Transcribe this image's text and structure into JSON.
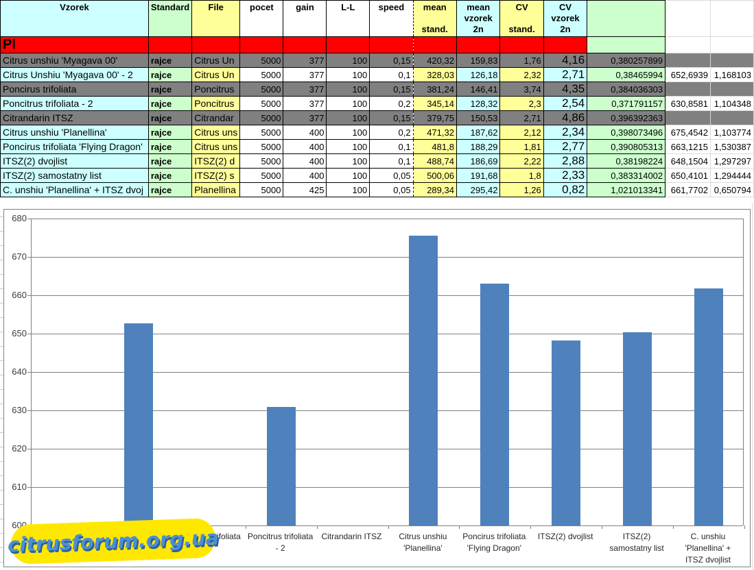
{
  "table": {
    "headers": [
      "Vzorek",
      "Standard",
      "File",
      "pocet",
      "gain",
      "L-L",
      "speed",
      "mean\n\nstand.",
      "mean\nvzorek\n2n",
      "CV\n\nstand.",
      "CV\nvzorek\n2n",
      "",
      "",
      ""
    ],
    "section_label": "PI",
    "rows": [
      {
        "muted": true,
        "cells": [
          "Citrus unshiu 'Myagava 00'",
          "rajce",
          "Citrus Un",
          "5000",
          "377",
          "100",
          "0,15",
          "420,32",
          "159,83",
          "1,76",
          "4,16",
          "0,380257899",
          "",
          ""
        ]
      },
      {
        "muted": false,
        "cells": [
          "Citrus Unshiu 'Myagava 00' - 2",
          "rajce",
          "Citrus Un",
          "5000",
          "377",
          "100",
          "0,1",
          "328,03",
          "126,18",
          "2,32",
          "2,71",
          "0,38465994",
          "652,6939",
          "1,168103"
        ]
      },
      {
        "muted": true,
        "cells": [
          "Poncirus trifoliata",
          "rajce",
          "Poncitrus",
          "5000",
          "377",
          "100",
          "0,15",
          "381,24",
          "146,41",
          "3,74",
          "4,35",
          "0,384036303",
          "",
          ""
        ]
      },
      {
        "muted": false,
        "cells": [
          "Poncitrus trifoliata - 2",
          "rajce",
          "Poncitrus",
          "5000",
          "377",
          "100",
          "0,2",
          "345,14",
          "128,32",
          "2,3",
          "2,54",
          "0,371791157",
          "630,8581",
          "1,104348"
        ]
      },
      {
        "muted": true,
        "cells": [
          "Citrandarin ITSZ",
          "rajce",
          "Citrandar",
          "5000",
          "377",
          "100",
          "0,15",
          "379,75",
          "150,53",
          "2,71",
          "4,86",
          "0,396392363",
          "",
          ""
        ]
      },
      {
        "muted": false,
        "cells": [
          "Citrus unshiu 'Planellina'",
          "rajce",
          "Citrus uns",
          "5000",
          "400",
          "100",
          "0,2",
          "471,32",
          "187,62",
          "2,12",
          "2,34",
          "0,398073496",
          "675,4542",
          "1,103774"
        ]
      },
      {
        "muted": false,
        "cells": [
          "Poncirus trifoliata 'Flying Dragon'",
          "rajce",
          "Citrus uns",
          "5000",
          "400",
          "100",
          "0,1",
          "481,8",
          "188,29",
          "1,81",
          "2,77",
          "0,390805313",
          "663,1215",
          "1,530387"
        ]
      },
      {
        "muted": false,
        "cells": [
          "ITSZ(2) dvojlist",
          "rajce",
          "ITSZ(2) d",
          "5000",
          "400",
          "100",
          "0,1",
          "488,74",
          "186,69",
          "2,22",
          "2,88",
          "0,38198224",
          "648,1504",
          "1,297297"
        ]
      },
      {
        "muted": false,
        "cells": [
          "ITSZ(2) samostatny list",
          "rajce",
          "ITSZ(2) s",
          "5000",
          "400",
          "100",
          "0,05",
          "500,06",
          "191,68",
          "1,8",
          "2,33",
          "0,383314002",
          "650,4101",
          "1,294444"
        ]
      },
      {
        "muted": false,
        "cells": [
          "C. unshiu 'Planellina' + ITSZ dvoj",
          "rajce",
          "Planellina",
          "5000",
          "425",
          "100",
          "0,05",
          "289,34",
          "295,42",
          "1,26",
          "0,82",
          "1,021013341",
          "661,7702",
          "0,650794"
        ]
      }
    ]
  },
  "colors": {
    "bar_blue": "#4F81BD",
    "section_red": "#FF0000",
    "muted_gray": "#808080",
    "cyan": "#CCFFFF",
    "green": "#CCFFCC",
    "yellow": "#FFFF99"
  },
  "watermark": {
    "text": "citrusforum.org.ua"
  },
  "chart_data": {
    "type": "bar",
    "title": "",
    "xlabel": "",
    "ylabel": "",
    "categories": [
      "Citrus unshiu 'Myagava 00'",
      "Citrus Unshiu 'Myagava 00' - 2",
      "Poncirus trifoliata",
      "Poncitrus trifoliata - 2",
      "Citrandarin ITSZ",
      "Citrus unshiu 'Planellina'",
      "Poncirus trifoliata 'Flying Dragon'",
      "ITSZ(2) dvojlist",
      "ITSZ(2) samostatny list",
      "C. unshiu 'Planellina' + ITSZ dvojlist"
    ],
    "values": [
      null,
      652.6939,
      null,
      630.8581,
      null,
      675.4542,
      663.1215,
      648.1504,
      650.4101,
      661.7702
    ],
    "ylim": [
      600,
      680
    ],
    "ytick_step": 10,
    "grid": true,
    "legend_position": "none",
    "bar_color": "#4F81BD"
  }
}
